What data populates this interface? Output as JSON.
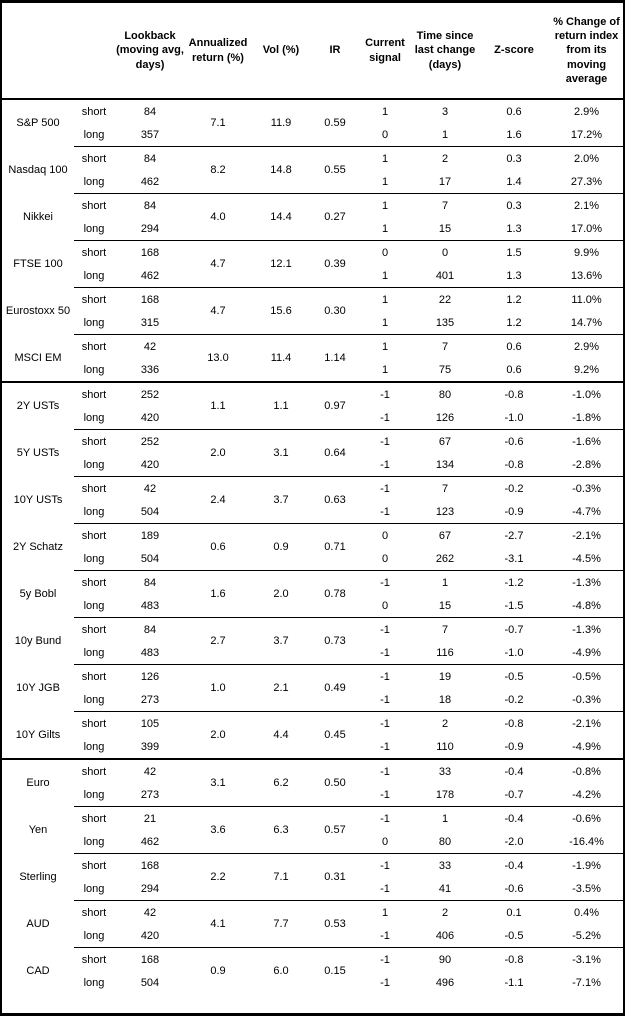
{
  "table": {
    "headers": {
      "lookback": "Lookback (moving avg, days)",
      "annualized": "Annualized return (%)",
      "vol": "Vol (%)",
      "ir": "IR",
      "signal": "Current signal",
      "time": "Time since last change (days)",
      "zscore": "Z-score",
      "pct": "% Change of return index from its moving average"
    },
    "groups": [
      {
        "asset": "S&P 500",
        "annualized": "7.1",
        "vol": "11.9",
        "ir": "0.59",
        "rows": [
          {
            "leg": "short",
            "lookback": "84",
            "signal": "1",
            "time": "3",
            "zscore": "0.6",
            "pct": "2.9%"
          },
          {
            "leg": "long",
            "lookback": "357",
            "signal": "0",
            "time": "1",
            "zscore": "1.6",
            "pct": "17.2%"
          }
        ]
      },
      {
        "asset": "Nasdaq 100",
        "annualized": "8.2",
        "vol": "14.8",
        "ir": "0.55",
        "rows": [
          {
            "leg": "short",
            "lookback": "84",
            "signal": "1",
            "time": "2",
            "zscore": "0.3",
            "pct": "2.0%"
          },
          {
            "leg": "long",
            "lookback": "462",
            "signal": "1",
            "time": "17",
            "zscore": "1.4",
            "pct": "27.3%"
          }
        ]
      },
      {
        "asset": "Nikkei",
        "annualized": "4.0",
        "vol": "14.4",
        "ir": "0.27",
        "rows": [
          {
            "leg": "short",
            "lookback": "84",
            "signal": "1",
            "time": "7",
            "zscore": "0.3",
            "pct": "2.1%"
          },
          {
            "leg": "long",
            "lookback": "294",
            "signal": "1",
            "time": "15",
            "zscore": "1.3",
            "pct": "17.0%"
          }
        ]
      },
      {
        "asset": "FTSE 100",
        "annualized": "4.7",
        "vol": "12.1",
        "ir": "0.39",
        "rows": [
          {
            "leg": "short",
            "lookback": "168",
            "signal": "0",
            "time": "0",
            "zscore": "1.5",
            "pct": "9.9%"
          },
          {
            "leg": "long",
            "lookback": "462",
            "signal": "1",
            "time": "401",
            "zscore": "1.3",
            "pct": "13.6%"
          }
        ]
      },
      {
        "asset": "Eurostoxx 50",
        "annualized": "4.7",
        "vol": "15.6",
        "ir": "0.30",
        "rows": [
          {
            "leg": "short",
            "lookback": "168",
            "signal": "1",
            "time": "22",
            "zscore": "1.2",
            "pct": "11.0%"
          },
          {
            "leg": "long",
            "lookback": "315",
            "signal": "1",
            "time": "135",
            "zscore": "1.2",
            "pct": "14.7%"
          }
        ]
      },
      {
        "asset": "MSCI EM",
        "annualized": "13.0",
        "vol": "11.4",
        "ir": "1.14",
        "rows": [
          {
            "leg": "short",
            "lookback": "42",
            "signal": "1",
            "time": "7",
            "zscore": "0.6",
            "pct": "2.9%"
          },
          {
            "leg": "long",
            "lookback": "336",
            "signal": "1",
            "time": "75",
            "zscore": "0.6",
            "pct": "9.2%"
          }
        ]
      },
      {
        "asset": "2Y USTs",
        "section_start": true,
        "annualized": "1.1",
        "vol": "1.1",
        "ir": "0.97",
        "rows": [
          {
            "leg": "short",
            "lookback": "252",
            "signal": "-1",
            "time": "80",
            "zscore": "-0.8",
            "pct": "-1.0%"
          },
          {
            "leg": "long",
            "lookback": "420",
            "signal": "-1",
            "time": "126",
            "zscore": "-1.0",
            "pct": "-1.8%"
          }
        ]
      },
      {
        "asset": "5Y USTs",
        "annualized": "2.0",
        "vol": "3.1",
        "ir": "0.64",
        "rows": [
          {
            "leg": "short",
            "lookback": "252",
            "signal": "-1",
            "time": "67",
            "zscore": "-0.6",
            "pct": "-1.6%"
          },
          {
            "leg": "long",
            "lookback": "420",
            "signal": "-1",
            "time": "134",
            "zscore": "-0.8",
            "pct": "-2.8%"
          }
        ]
      },
      {
        "asset": "10Y USTs",
        "annualized": "2.4",
        "vol": "3.7",
        "ir": "0.63",
        "rows": [
          {
            "leg": "short",
            "lookback": "42",
            "signal": "-1",
            "time": "7",
            "zscore": "-0.2",
            "pct": "-0.3%"
          },
          {
            "leg": "long",
            "lookback": "504",
            "signal": "-1",
            "time": "123",
            "zscore": "-0.9",
            "pct": "-4.7%"
          }
        ]
      },
      {
        "asset": "2Y Schatz",
        "annualized": "0.6",
        "vol": "0.9",
        "ir": "0.71",
        "rows": [
          {
            "leg": "short",
            "lookback": "189",
            "signal": "0",
            "time": "67",
            "zscore": "-2.7",
            "pct": "-2.1%"
          },
          {
            "leg": "long",
            "lookback": "504",
            "signal": "0",
            "time": "262",
            "zscore": "-3.1",
            "pct": "-4.5%"
          }
        ]
      },
      {
        "asset": "5y Bobl",
        "annualized": "1.6",
        "vol": "2.0",
        "ir": "0.78",
        "rows": [
          {
            "leg": "short",
            "lookback": "84",
            "signal": "-1",
            "time": "1",
            "zscore": "-1.2",
            "pct": "-1.3%"
          },
          {
            "leg": "long",
            "lookback": "483",
            "signal": "0",
            "time": "15",
            "zscore": "-1.5",
            "pct": "-4.8%"
          }
        ]
      },
      {
        "asset": "10y Bund",
        "annualized": "2.7",
        "vol": "3.7",
        "ir": "0.73",
        "rows": [
          {
            "leg": "short",
            "lookback": "84",
            "signal": "-1",
            "time": "7",
            "zscore": "-0.7",
            "pct": "-1.3%"
          },
          {
            "leg": "long",
            "lookback": "483",
            "signal": "-1",
            "time": "116",
            "zscore": "-1.0",
            "pct": "-4.9%"
          }
        ]
      },
      {
        "asset": "10Y JGB",
        "annualized": "1.0",
        "vol": "2.1",
        "ir": "0.49",
        "rows": [
          {
            "leg": "short",
            "lookback": "126",
            "signal": "-1",
            "time": "19",
            "zscore": "-0.5",
            "pct": "-0.5%"
          },
          {
            "leg": "long",
            "lookback": "273",
            "signal": "-1",
            "time": "18",
            "zscore": "-0.2",
            "pct": "-0.3%"
          }
        ]
      },
      {
        "asset": "10Y Gilts",
        "annualized": "2.0",
        "vol": "4.4",
        "ir": "0.45",
        "rows": [
          {
            "leg": "short",
            "lookback": "105",
            "signal": "-1",
            "time": "2",
            "zscore": "-0.8",
            "pct": "-2.1%"
          },
          {
            "leg": "long",
            "lookback": "399",
            "signal": "-1",
            "time": "110",
            "zscore": "-0.9",
            "pct": "-4.9%"
          }
        ]
      },
      {
        "asset": "Euro",
        "section_start": true,
        "annualized": "3.1",
        "vol": "6.2",
        "ir": "0.50",
        "rows": [
          {
            "leg": "short",
            "lookback": "42",
            "signal": "-1",
            "time": "33",
            "zscore": "-0.4",
            "pct": "-0.8%"
          },
          {
            "leg": "long",
            "lookback": "273",
            "signal": "-1",
            "time": "178",
            "zscore": "-0.7",
            "pct": "-4.2%"
          }
        ]
      },
      {
        "asset": "Yen",
        "annualized": "3.6",
        "vol": "6.3",
        "ir": "0.57",
        "rows": [
          {
            "leg": "short",
            "lookback": "21",
            "signal": "-1",
            "time": "1",
            "zscore": "-0.4",
            "pct": "-0.6%"
          },
          {
            "leg": "long",
            "lookback": "462",
            "signal": "0",
            "time": "80",
            "zscore": "-2.0",
            "pct": "-16.4%"
          }
        ]
      },
      {
        "asset": "Sterling",
        "annualized": "2.2",
        "vol": "7.1",
        "ir": "0.31",
        "rows": [
          {
            "leg": "short",
            "lookback": "168",
            "signal": "-1",
            "time": "33",
            "zscore": "-0.4",
            "pct": "-1.9%"
          },
          {
            "leg": "long",
            "lookback": "294",
            "signal": "-1",
            "time": "41",
            "zscore": "-0.6",
            "pct": "-3.5%"
          }
        ]
      },
      {
        "asset": "AUD",
        "annualized": "4.1",
        "vol": "7.7",
        "ir": "0.53",
        "rows": [
          {
            "leg": "short",
            "lookback": "42",
            "signal": "1",
            "time": "2",
            "zscore": "0.1",
            "pct": "0.4%"
          },
          {
            "leg": "long",
            "lookback": "420",
            "signal": "-1",
            "time": "406",
            "zscore": "-0.5",
            "pct": "-5.2%"
          }
        ]
      },
      {
        "asset": "CAD",
        "annualized": "0.9",
        "vol": "6.0",
        "ir": "0.15",
        "rows": [
          {
            "leg": "short",
            "lookback": "168",
            "signal": "-1",
            "time": "90",
            "zscore": "-0.8",
            "pct": "-3.1%"
          },
          {
            "leg": "long",
            "lookback": "504",
            "signal": "-1",
            "time": "496",
            "zscore": "-1.1",
            "pct": "-7.1%"
          }
        ]
      }
    ]
  }
}
